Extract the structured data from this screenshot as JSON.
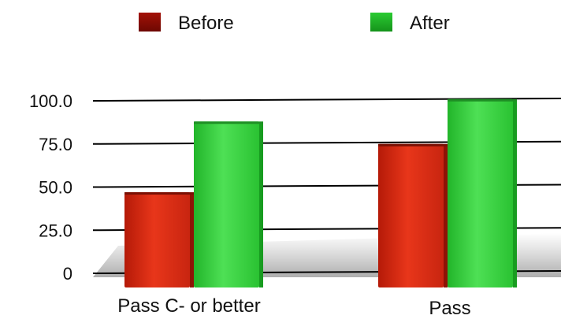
{
  "chart_data": {
    "type": "bar",
    "title": "",
    "xlabel": "",
    "ylabel": "",
    "categories": [
      "Pass C- or better",
      "Pass"
    ],
    "series": [
      {
        "name": "Before",
        "values": [
          47,
          75
        ],
        "color": "#d42a10"
      },
      {
        "name": "After",
        "values": [
          88,
          101
        ],
        "color": "#2fcf38"
      }
    ],
    "ylim": [
      0,
      100
    ],
    "yticks": [
      "0",
      "25.0",
      "50.0",
      "75.0",
      "100.0"
    ],
    "grid": true,
    "legend_position": "top"
  }
}
